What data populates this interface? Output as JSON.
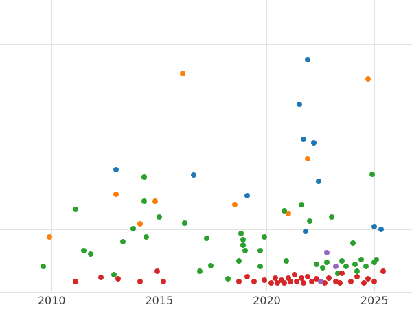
{
  "chart_data": {
    "type": "scatter",
    "title": "",
    "xlabel": "",
    "ylabel": "",
    "grid": true,
    "legend": "none",
    "tick_label_color": "#3d3d3d",
    "gridline_color": "#e3e3e3",
    "x_axis": {
      "min": 2007.6,
      "max": 2026.75,
      "ticks": [
        2010,
        2015,
        2020,
        2025
      ]
    },
    "y_axis": {
      "min": 0,
      "max": 118,
      "gridline_values": [
        0,
        25,
        50,
        75,
        100
      ],
      "tick_labels_visible": false
    },
    "series": [
      {
        "name": "series-blue",
        "color": "#1f77b4",
        "points": [
          [
            2013.0,
            49.4
          ],
          [
            2016.6,
            47.2
          ],
          [
            2019.1,
            38.9
          ],
          [
            2021.5,
            75.8
          ],
          [
            2021.9,
            93.9
          ],
          [
            2021.7,
            61.7
          ],
          [
            2022.2,
            60.3
          ],
          [
            2022.4,
            44.7
          ],
          [
            2021.8,
            24.4
          ],
          [
            2025.0,
            26.4
          ],
          [
            2025.3,
            25.3
          ]
        ]
      },
      {
        "name": "series-orange",
        "color": "#ff7f0e",
        "points": [
          [
            2009.9,
            22.2
          ],
          [
            2013.0,
            39.4
          ],
          [
            2014.1,
            27.5
          ],
          [
            2014.8,
            36.7
          ],
          [
            2016.1,
            88.3
          ],
          [
            2018.5,
            35.3
          ],
          [
            2021.0,
            31.7
          ],
          [
            2021.9,
            53.9
          ],
          [
            2024.7,
            86.1
          ]
        ]
      },
      {
        "name": "series-green",
        "color": "#2ca02c",
        "points": [
          [
            2009.6,
            10.3
          ],
          [
            2011.1,
            33.3
          ],
          [
            2011.5,
            16.7
          ],
          [
            2011.8,
            15.3
          ],
          [
            2012.9,
            6.9
          ],
          [
            2013.3,
            20.3
          ],
          [
            2013.8,
            25.6
          ],
          [
            2014.3,
            46.4
          ],
          [
            2014.3,
            36.7
          ],
          [
            2014.4,
            22.2
          ],
          [
            2015.0,
            30.3
          ],
          [
            2016.2,
            27.8
          ],
          [
            2016.9,
            8.3
          ],
          [
            2017.2,
            21.7
          ],
          [
            2017.4,
            10.6
          ],
          [
            2018.2,
            5.3
          ],
          [
            2018.7,
            12.5
          ],
          [
            2018.8,
            23.6
          ],
          [
            2018.9,
            21.1
          ],
          [
            2018.9,
            18.9
          ],
          [
            2019.0,
            16.7
          ],
          [
            2019.7,
            10.3
          ],
          [
            2019.7,
            16.7
          ],
          [
            2019.9,
            22.2
          ],
          [
            2020.8,
            32.8
          ],
          [
            2020.9,
            12.5
          ],
          [
            2021.6,
            35.3
          ],
          [
            2022.0,
            28.6
          ],
          [
            2022.3,
            11.1
          ],
          [
            2022.6,
            9.7
          ],
          [
            2022.8,
            11.9
          ],
          [
            2023.0,
            30.3
          ],
          [
            2023.3,
            7.5
          ],
          [
            2023.5,
            12.5
          ],
          [
            2023.7,
            10.3
          ],
          [
            2024.0,
            19.7
          ],
          [
            2024.1,
            11.1
          ],
          [
            2024.2,
            8.3
          ],
          [
            2024.4,
            13.1
          ],
          [
            2024.6,
            10.3
          ],
          [
            2024.9,
            47.5
          ],
          [
            2025.0,
            11.9
          ],
          [
            2025.1,
            13.1
          ]
        ]
      },
      {
        "name": "series-red",
        "color": "#d62728",
        "points": [
          [
            2011.1,
            4.2
          ],
          [
            2012.3,
            5.8
          ],
          [
            2013.1,
            5.3
          ],
          [
            2014.1,
            4.2
          ],
          [
            2014.9,
            8.3
          ],
          [
            2015.2,
            4.2
          ],
          [
            2018.7,
            4.2
          ],
          [
            2019.1,
            6.1
          ],
          [
            2019.4,
            4.2
          ],
          [
            2019.9,
            4.7
          ],
          [
            2020.2,
            3.6
          ],
          [
            2020.4,
            5.6
          ],
          [
            2020.5,
            3.6
          ],
          [
            2020.7,
            4.7
          ],
          [
            2020.8,
            3.6
          ],
          [
            2021.0,
            5.6
          ],
          [
            2021.1,
            4.2
          ],
          [
            2021.3,
            6.9
          ],
          [
            2021.4,
            4.2
          ],
          [
            2021.6,
            5.6
          ],
          [
            2021.7,
            3.6
          ],
          [
            2021.9,
            6.1
          ],
          [
            2022.1,
            4.2
          ],
          [
            2022.3,
            5.3
          ],
          [
            2022.7,
            3.6
          ],
          [
            2022.9,
            5.6
          ],
          [
            2023.2,
            4.2
          ],
          [
            2023.4,
            3.6
          ],
          [
            2023.5,
            7.5
          ],
          [
            2023.9,
            4.2
          ],
          [
            2024.2,
            6.1
          ],
          [
            2024.5,
            3.6
          ],
          [
            2024.7,
            5.3
          ],
          [
            2025.0,
            4.2
          ],
          [
            2025.4,
            8.3
          ]
        ]
      },
      {
        "name": "series-purple",
        "color": "#9467bd",
        "points": [
          [
            2022.8,
            15.8
          ],
          [
            2022.5,
            4.2
          ],
          [
            2023.2,
            10.3
          ]
        ]
      }
    ],
    "x_tick_labels": [
      "2010",
      "2015",
      "2020",
      "2025"
    ]
  }
}
